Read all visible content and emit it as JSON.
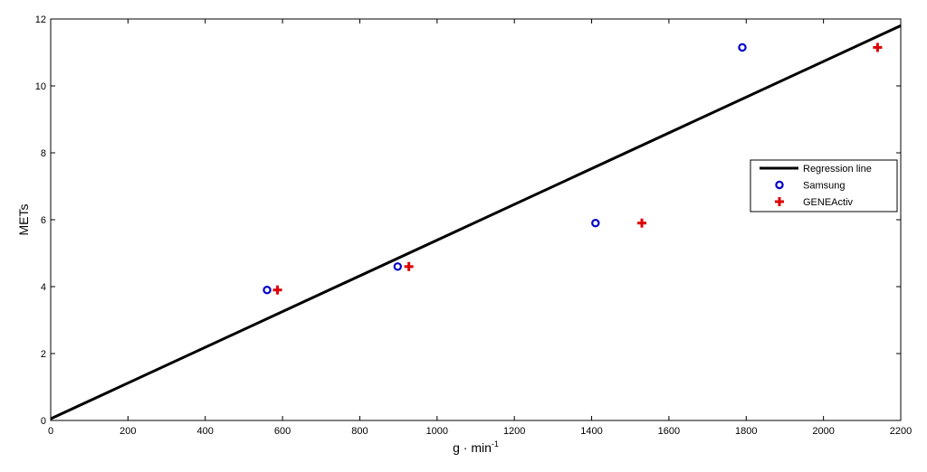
{
  "chart_data": {
    "type": "scatter",
    "xlabel": "g · min",
    "xlabel_superscript": "-1",
    "ylabel": "METs",
    "xlim": [
      0,
      2200
    ],
    "ylim": [
      0,
      12
    ],
    "xticks": [
      0,
      200,
      400,
      600,
      800,
      1000,
      1200,
      1400,
      1600,
      1800,
      2000,
      2200
    ],
    "yticks": [
      0,
      2,
      4,
      6,
      8,
      10,
      12
    ],
    "grid": false,
    "legend_position": "right",
    "series": [
      {
        "name": "Regression line",
        "kind": "line",
        "color": "#000000",
        "x": [
          0,
          2200
        ],
        "y": [
          0.05,
          11.8
        ]
      },
      {
        "name": "Samsung",
        "kind": "scatter",
        "marker": "circle",
        "color": "#0000cc",
        "x": [
          560,
          898,
          1410,
          1790
        ],
        "y": [
          3.9,
          4.6,
          5.9,
          11.15
        ]
      },
      {
        "name": "GENEActiv",
        "kind": "scatter",
        "marker": "plus",
        "color": "#dd0000",
        "x": [
          587,
          927,
          1530,
          2140
        ],
        "y": [
          3.9,
          4.6,
          5.9,
          11.15
        ]
      }
    ]
  }
}
